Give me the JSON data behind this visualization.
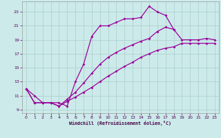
{
  "background_color": "#cceaea",
  "line_color": "#990099",
  "grid_color": "#aacccc",
  "xlabel": "Windchill (Refroidissement éolien,°C)",
  "xlim": [
    -0.5,
    23.5
  ],
  "ylim": [
    8.5,
    24.5
  ],
  "xticks": [
    0,
    1,
    2,
    3,
    4,
    5,
    6,
    7,
    8,
    9,
    10,
    11,
    12,
    13,
    14,
    15,
    16,
    17,
    18,
    19,
    20,
    21,
    22,
    23
  ],
  "yticks": [
    9,
    11,
    13,
    15,
    17,
    19,
    21,
    23
  ],
  "line1_x": [
    0,
    1,
    2,
    3,
    4,
    5,
    6,
    7,
    8,
    9,
    10,
    11,
    12,
    13,
    14,
    15,
    16,
    17,
    18
  ],
  "line1_y": [
    12.0,
    11.0,
    10.0,
    10.0,
    10.0,
    9.5,
    13.0,
    15.5,
    19.5,
    21.0,
    21.0,
    21.5,
    22.0,
    22.0,
    22.2,
    23.8,
    23.0,
    22.5,
    20.5
  ],
  "line2_x": [
    0,
    1,
    2,
    3,
    4,
    5,
    6,
    7,
    8,
    9,
    10,
    11,
    12,
    13,
    14,
    15,
    16,
    17,
    18,
    19,
    20,
    21,
    22,
    23
  ],
  "line2_y": [
    12.0,
    10.0,
    10.0,
    10.0,
    9.5,
    10.2,
    10.8,
    11.5,
    12.2,
    13.0,
    13.8,
    14.5,
    15.2,
    15.8,
    16.5,
    17.0,
    17.5,
    17.8,
    18.0,
    18.5,
    18.5,
    18.5,
    18.5,
    18.5
  ],
  "line3_x": [
    0,
    1,
    2,
    3,
    4,
    5,
    6,
    7,
    8,
    9,
    10,
    11,
    12,
    13,
    14,
    15,
    16,
    17,
    18,
    19,
    20,
    21,
    22,
    23
  ],
  "line3_y": [
    12.0,
    10.0,
    10.0,
    10.0,
    9.5,
    10.5,
    11.5,
    12.8,
    14.2,
    15.5,
    16.5,
    17.2,
    17.8,
    18.3,
    18.8,
    19.2,
    20.2,
    20.8,
    20.5,
    19.0,
    19.0,
    19.0,
    19.2,
    19.0
  ]
}
